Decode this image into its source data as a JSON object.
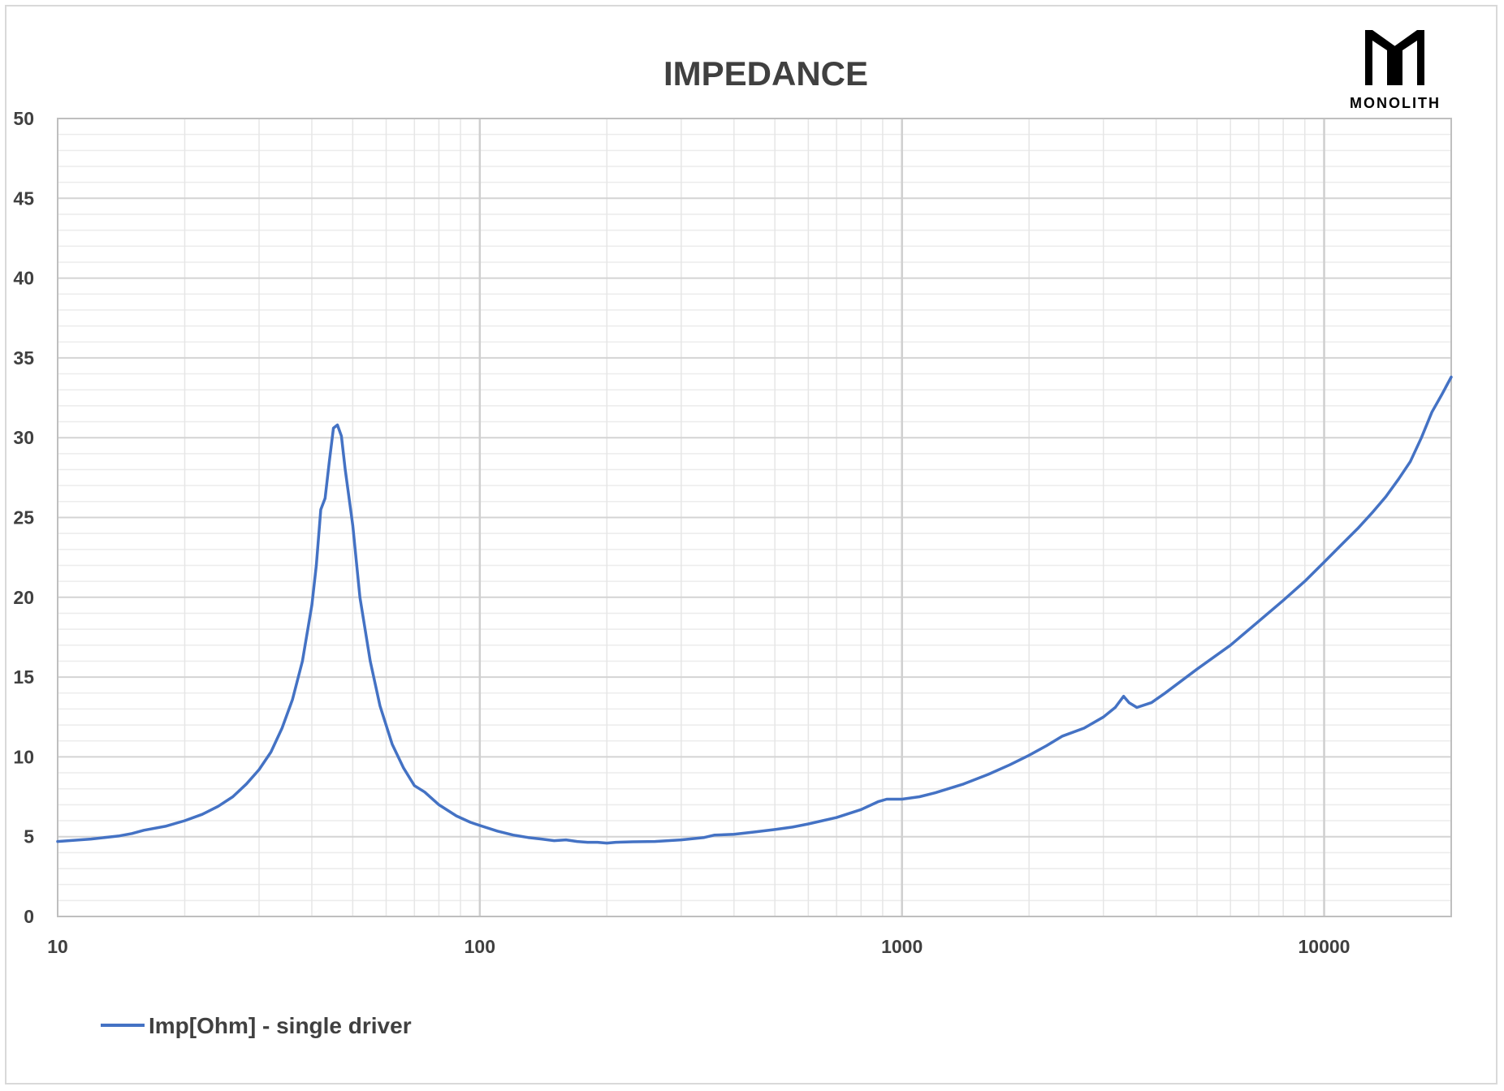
{
  "chart_data": {
    "type": "line",
    "title": "IMPEDANCE",
    "xlabel": "",
    "ylabel": "",
    "x_scale": "log",
    "xlim": [
      10,
      20000
    ],
    "ylim": [
      0,
      50
    ],
    "x_tick_labels": [
      "10",
      "100",
      "1000",
      "10000"
    ],
    "x_tick_values": [
      10,
      100,
      1000,
      10000
    ],
    "y_tick_labels": [
      "0",
      "5",
      "10",
      "15",
      "20",
      "25",
      "30",
      "35",
      "40",
      "45",
      "50"
    ],
    "y_tick_values": [
      0,
      5,
      10,
      15,
      20,
      25,
      30,
      35,
      40,
      45,
      50
    ],
    "grid": true,
    "legend_position": "bottom-left",
    "series": [
      {
        "name": "Imp[Ohm] - single driver",
        "color": "#4472c4",
        "points": [
          [
            10,
            4.7
          ],
          [
            12,
            4.85
          ],
          [
            14,
            5.05
          ],
          [
            15,
            5.2
          ],
          [
            16,
            5.4
          ],
          [
            18,
            5.65
          ],
          [
            20,
            6.0
          ],
          [
            22,
            6.4
          ],
          [
            24,
            6.9
          ],
          [
            26,
            7.5
          ],
          [
            28,
            8.3
          ],
          [
            30,
            9.2
          ],
          [
            32,
            10.3
          ],
          [
            34,
            11.8
          ],
          [
            36,
            13.6
          ],
          [
            38,
            16.0
          ],
          [
            40,
            19.5
          ],
          [
            41,
            22.0
          ],
          [
            42,
            25.5
          ],
          [
            43,
            26.2
          ],
          [
            44,
            28.5
          ],
          [
            45,
            30.6
          ],
          [
            46,
            30.8
          ],
          [
            47,
            30.1
          ],
          [
            48,
            28.0
          ],
          [
            50,
            24.5
          ],
          [
            52,
            20.0
          ],
          [
            55,
            16.0
          ],
          [
            58,
            13.2
          ],
          [
            62,
            10.8
          ],
          [
            66,
            9.3
          ],
          [
            70,
            8.2
          ],
          [
            74,
            7.8
          ],
          [
            80,
            7.0
          ],
          [
            88,
            6.3
          ],
          [
            95,
            5.9
          ],
          [
            100,
            5.7
          ],
          [
            110,
            5.35
          ],
          [
            120,
            5.1
          ],
          [
            130,
            4.95
          ],
          [
            140,
            4.85
          ],
          [
            150,
            4.75
          ],
          [
            160,
            4.8
          ],
          [
            170,
            4.7
          ],
          [
            180,
            4.65
          ],
          [
            190,
            4.65
          ],
          [
            200,
            4.6
          ],
          [
            210,
            4.65
          ],
          [
            230,
            4.68
          ],
          [
            260,
            4.7
          ],
          [
            300,
            4.8
          ],
          [
            340,
            4.95
          ],
          [
            360,
            5.1
          ],
          [
            400,
            5.15
          ],
          [
            450,
            5.3
          ],
          [
            500,
            5.45
          ],
          [
            550,
            5.6
          ],
          [
            600,
            5.8
          ],
          [
            700,
            6.2
          ],
          [
            800,
            6.7
          ],
          [
            880,
            7.2
          ],
          [
            920,
            7.35
          ],
          [
            1000,
            7.35
          ],
          [
            1100,
            7.5
          ],
          [
            1200,
            7.75
          ],
          [
            1400,
            8.3
          ],
          [
            1600,
            8.9
          ],
          [
            1800,
            9.5
          ],
          [
            2000,
            10.1
          ],
          [
            2200,
            10.7
          ],
          [
            2400,
            11.3
          ],
          [
            2700,
            11.8
          ],
          [
            3000,
            12.5
          ],
          [
            3200,
            13.1
          ],
          [
            3350,
            13.8
          ],
          [
            3450,
            13.4
          ],
          [
            3600,
            13.1
          ],
          [
            3900,
            13.4
          ],
          [
            4200,
            14.0
          ],
          [
            5000,
            15.5
          ],
          [
            6000,
            17.0
          ],
          [
            7000,
            18.5
          ],
          [
            8000,
            19.8
          ],
          [
            9000,
            21.0
          ],
          [
            10000,
            22.2
          ],
          [
            11000,
            23.3
          ],
          [
            12000,
            24.3
          ],
          [
            13000,
            25.3
          ],
          [
            14000,
            26.3
          ],
          [
            15000,
            27.4
          ],
          [
            16000,
            28.5
          ],
          [
            17000,
            30.0
          ],
          [
            18000,
            31.6
          ],
          [
            19000,
            32.7
          ],
          [
            20000,
            33.8
          ]
        ]
      }
    ]
  },
  "logo": {
    "text": "MONOLITH",
    "icon": "monolith-logo-icon"
  }
}
